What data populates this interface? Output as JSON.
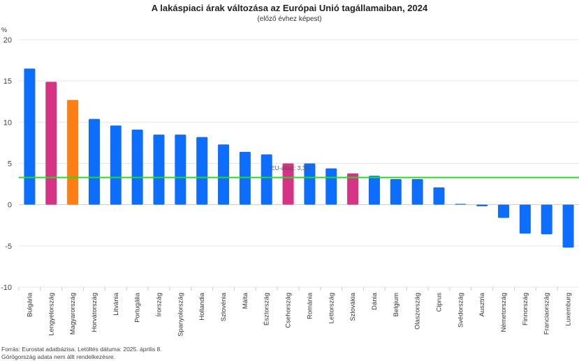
{
  "chart_data": {
    "type": "bar",
    "title": "A lakáspiaci árak változása az Európai Unió tagállamaiban, 2024",
    "subtitle": "(előző évhez képest)",
    "ylabel": "%",
    "ylim": [
      -10,
      20
    ],
    "yticks": [
      -10,
      -5,
      0,
      5,
      10,
      15,
      20
    ],
    "grid": true,
    "categories": [
      "Bulgária",
      "Lengyelország",
      "Magyarország",
      "Horvátország",
      "Litvánia",
      "Portugália",
      "Írország",
      "Spanyolország",
      "Hollandia",
      "Szlovénia",
      "Málta",
      "Észtország",
      "Csehország",
      "Románia",
      "Lettország",
      "Szlovákia",
      "Dánia",
      "Belgium",
      "Olaszország",
      "Ciprus",
      "Svédország",
      "Ausztria",
      "Németország",
      "Finnország",
      "Franciaország",
      "Luxemburg"
    ],
    "values": [
      16.5,
      14.9,
      12.7,
      10.4,
      9.6,
      9.1,
      8.5,
      8.5,
      8.2,
      7.3,
      6.4,
      6.1,
      5.0,
      5.0,
      4.4,
      3.8,
      3.5,
      3.1,
      3.1,
      2.1,
      0.1,
      -0.2,
      -1.6,
      -3.5,
      -3.6,
      -5.2
    ],
    "colors": [
      "#0d6efd",
      "#d63384",
      "#fd7e14",
      "#0d6efd",
      "#0d6efd",
      "#0d6efd",
      "#0d6efd",
      "#0d6efd",
      "#0d6efd",
      "#0d6efd",
      "#0d6efd",
      "#0d6efd",
      "#d63384",
      "#0d6efd",
      "#0d6efd",
      "#d63384",
      "#0d6efd",
      "#0d6efd",
      "#0d6efd",
      "#0d6efd",
      "#0d6efd",
      "#0d6efd",
      "#0d6efd",
      "#0d6efd",
      "#0d6efd",
      "#0d6efd"
    ],
    "reference_line": {
      "value": 3.3,
      "label": "EU-átlag: 3,3%",
      "color": "#22dd22"
    }
  },
  "footer": {
    "source": "Forrás: Eurostat adatbázisa. Letöltés dátuma: 2025. április 8.",
    "note": "Görögország adata nem állt rendelkezésre."
  }
}
